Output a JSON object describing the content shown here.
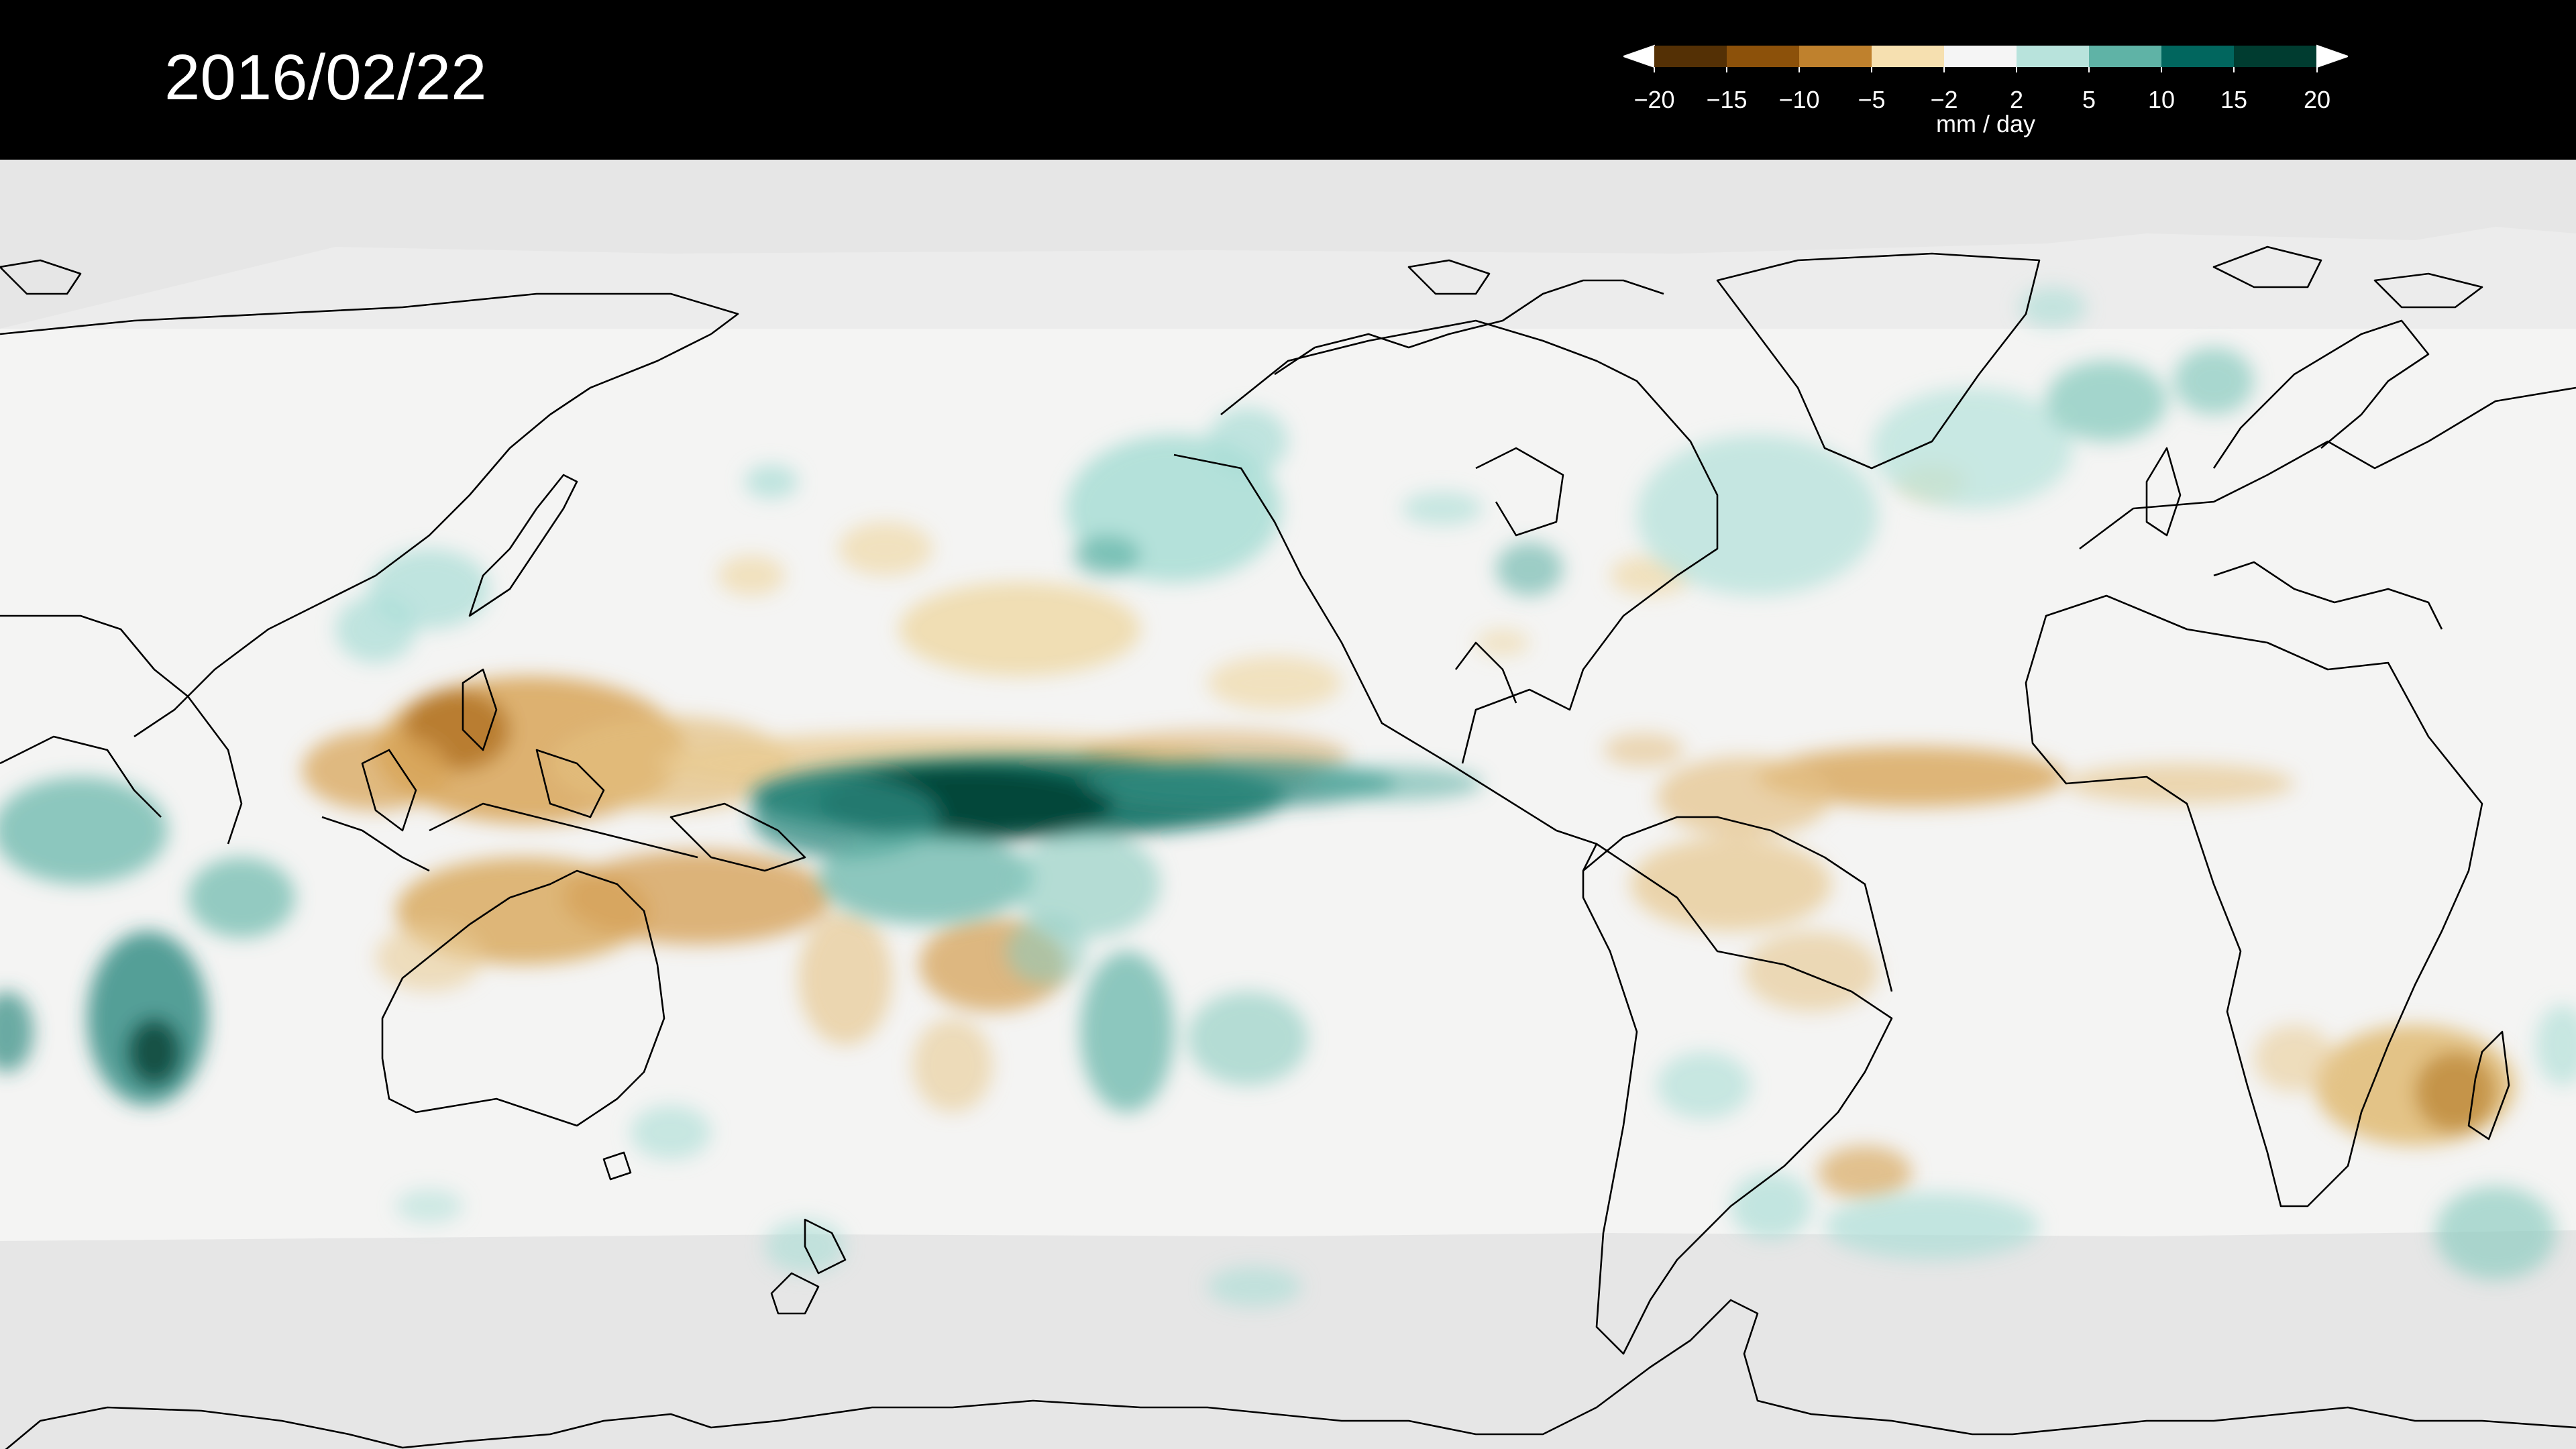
{
  "date_label": "2016/02/22",
  "legend": {
    "unit": "mm / day",
    "ticks": [
      "−20",
      "−15",
      "−10",
      "−5",
      "−2",
      "2",
      "5",
      "10",
      "15",
      "20"
    ],
    "colors": [
      "#543005",
      "#8c510a",
      "#bf812d",
      "#dfc27d",
      "#f6e8c3",
      "#f5f5f5",
      "#c7eae5",
      "#80cdc1",
      "#35978f",
      "#01665e",
      "#003c30"
    ],
    "extend": "both"
  },
  "map": {
    "projection": "equirectangular",
    "central_longitude": 180,
    "variable": "precipitation anomaly",
    "ocean_neutral_color": "#f5f5f5",
    "polar_mask_color": "#e6e6e6",
    "coastline_color": "#000000"
  }
}
